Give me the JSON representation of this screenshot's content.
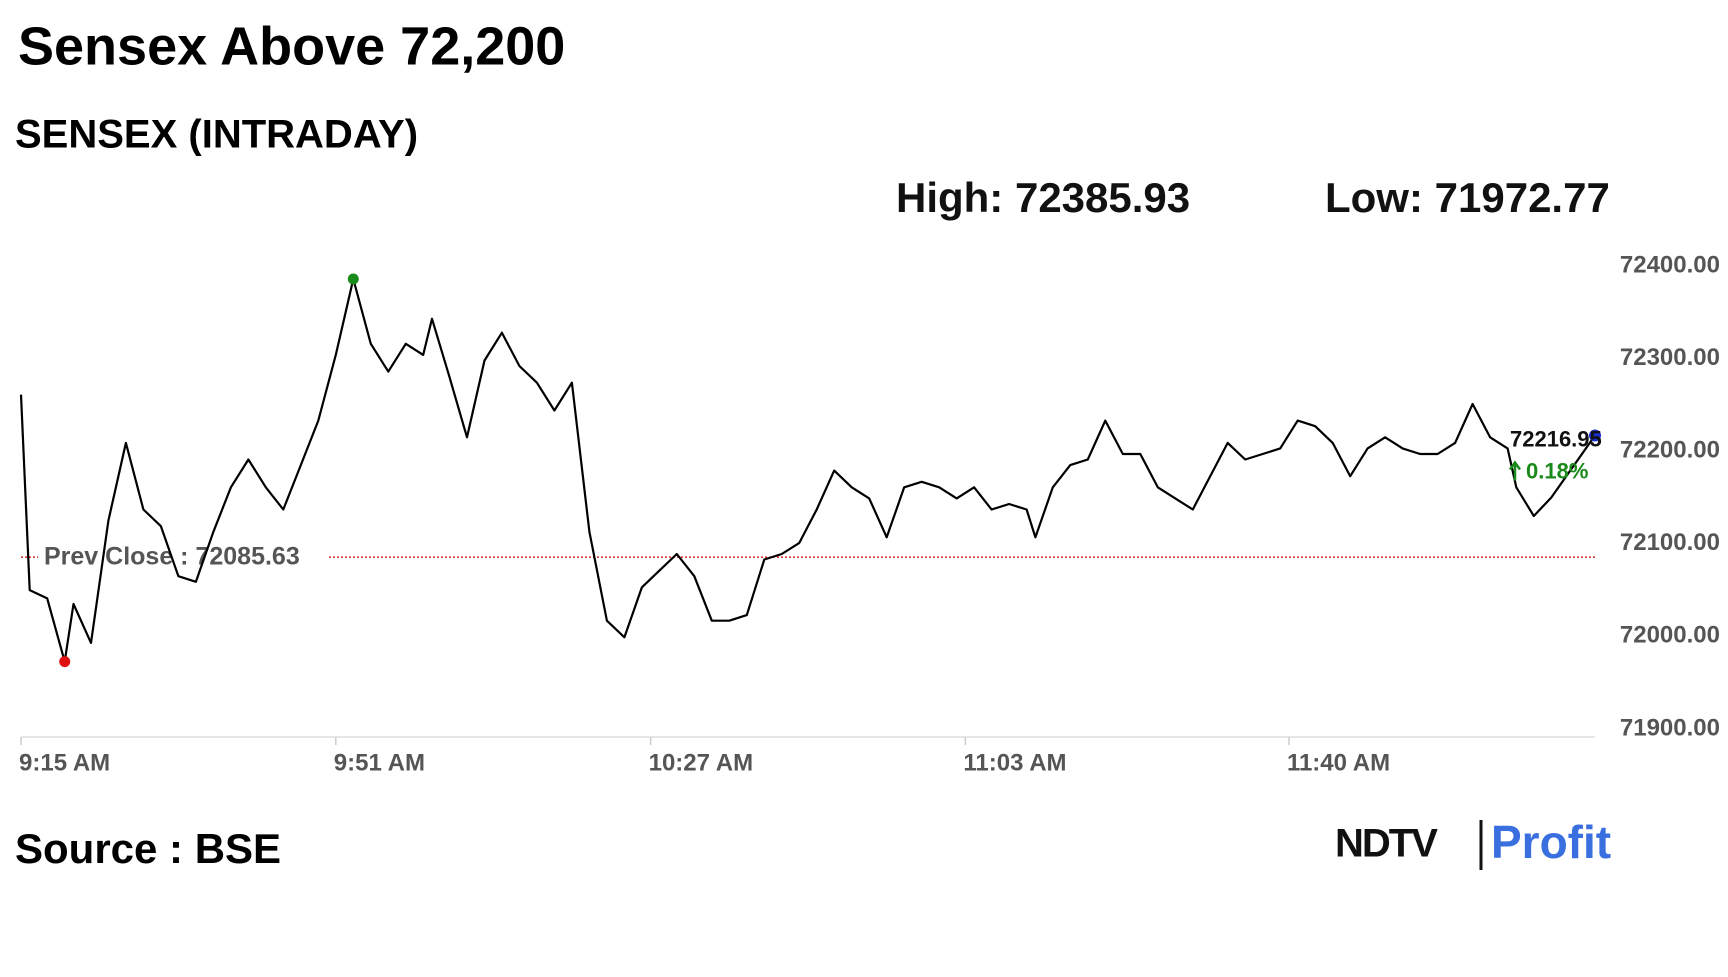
{
  "chart_data": {
    "type": "line",
    "title": "Sensex Above 72,200",
    "subtitle": "SENSEX (INTRADAY)",
    "high_label": "High: 72385.93",
    "low_label": "Low: 71972.77",
    "source": "Source : BSE",
    "brand": [
      "NDTV",
      "Profit"
    ],
    "color": "#000000",
    "x": [
      "9:15 AM",
      "9:16 AM",
      "9:18 AM",
      "9:20 AM",
      "9:21 AM",
      "9:23 AM",
      "9:25 AM",
      "9:27 AM",
      "9:29 AM",
      "9:31 AM",
      "9:33 AM",
      "9:35 AM",
      "9:37 AM",
      "9:39 AM",
      "9:41 AM",
      "9:43 AM",
      "9:45 AM",
      "9:47 AM",
      "9:49 AM",
      "9:51 AM",
      "9:53 AM",
      "9:55 AM",
      "9:57 AM",
      "9:59 AM",
      "10:01 AM",
      "10:02 AM",
      "10:04 AM",
      "10:06 AM",
      "10:08 AM",
      "10:10 AM",
      "10:12 AM",
      "10:14 AM",
      "10:16 AM",
      "10:18 AM",
      "10:20 AM",
      "10:22 AM",
      "10:24 AM",
      "10:26 AM",
      "10:28 AM",
      "10:30 AM",
      "10:32 AM",
      "10:34 AM",
      "10:36 AM",
      "10:38 AM",
      "10:40 AM",
      "10:42 AM",
      "10:44 AM",
      "10:46 AM",
      "10:48 AM",
      "10:50 AM",
      "10:52 AM",
      "10:54 AM",
      "10:56 AM",
      "10:58 AM",
      "11:00 AM",
      "11:02 AM",
      "11:04 AM",
      "11:06 AM",
      "11:08 AM",
      "11:10 AM",
      "11:11 AM",
      "11:13 AM",
      "11:15 AM",
      "11:17 AM",
      "11:19 AM",
      "11:21 AM",
      "11:23 AM",
      "11:25 AM",
      "11:27 AM",
      "11:29 AM",
      "11:31 AM",
      "11:33 AM",
      "11:35 AM",
      "11:37 AM",
      "11:39 AM",
      "11:41 AM",
      "11:43 AM",
      "11:45 AM",
      "11:47 AM",
      "11:49 AM",
      "11:51 AM",
      "11:53 AM",
      "11:55 AM",
      "11:57 AM",
      "11:59 AM",
      "12:01 PM",
      "12:03 PM",
      "12:05 PM",
      "12:06 PM",
      "12:08 PM",
      "12:10 PM",
      "12:15 PM"
    ],
    "values": [
      72261,
      72050,
      72041,
      71972.77,
      72035,
      71993,
      72125,
      72209,
      72137,
      72119,
      72065,
      72059,
      72113,
      72161,
      72191,
      72161,
      72137,
      72185,
      72233,
      72304,
      72385.93,
      72316,
      72286,
      72316,
      72304,
      72343,
      72280,
      72215,
      72298,
      72328,
      72292,
      72274,
      72244,
      72274,
      72113,
      72017,
      71999,
      72053,
      72071,
      72089,
      72065,
      72017,
      72017,
      72023,
      72083,
      72089,
      72101,
      72137,
      72179,
      72161,
      72149,
      72107,
      72161,
      72167,
      72161,
      72149,
      72161,
      72137,
      72143,
      72137,
      72107,
      72161,
      72185,
      72191,
      72233,
      72197,
      72197,
      72161,
      72149,
      72137,
      72173,
      72209,
      72191,
      72197,
      72203,
      72233,
      72227,
      72209,
      72173,
      72203,
      72215,
      72203,
      72197,
      72197,
      72209,
      72251,
      72215,
      72203,
      72161,
      72130,
      72150,
      72216.95
    ],
    "xlim": [
      "9:15 AM",
      "12:15 PM"
    ],
    "xticks": [
      "9:15 AM",
      "9:51 AM",
      "10:27 AM",
      "11:03 AM",
      "11:40 AM"
    ],
    "ylim": [
      71900,
      72400
    ],
    "yticks": [
      {
        "value": 71900,
        "label": "71900.00"
      },
      {
        "value": 72000,
        "label": "72000.00"
      },
      {
        "value": 72100,
        "label": "72100.00"
      },
      {
        "value": 72200,
        "label": "72200.00"
      },
      {
        "value": 72300,
        "label": "72300.00"
      },
      {
        "value": 72400,
        "label": "72400.00"
      }
    ],
    "prev_close": {
      "value": 72085.63,
      "label": "Prev Close : 72085.63"
    },
    "last_price": 72216.95,
    "change": {
      "value": 0.18,
      "label": "0.18%"
    }
  }
}
